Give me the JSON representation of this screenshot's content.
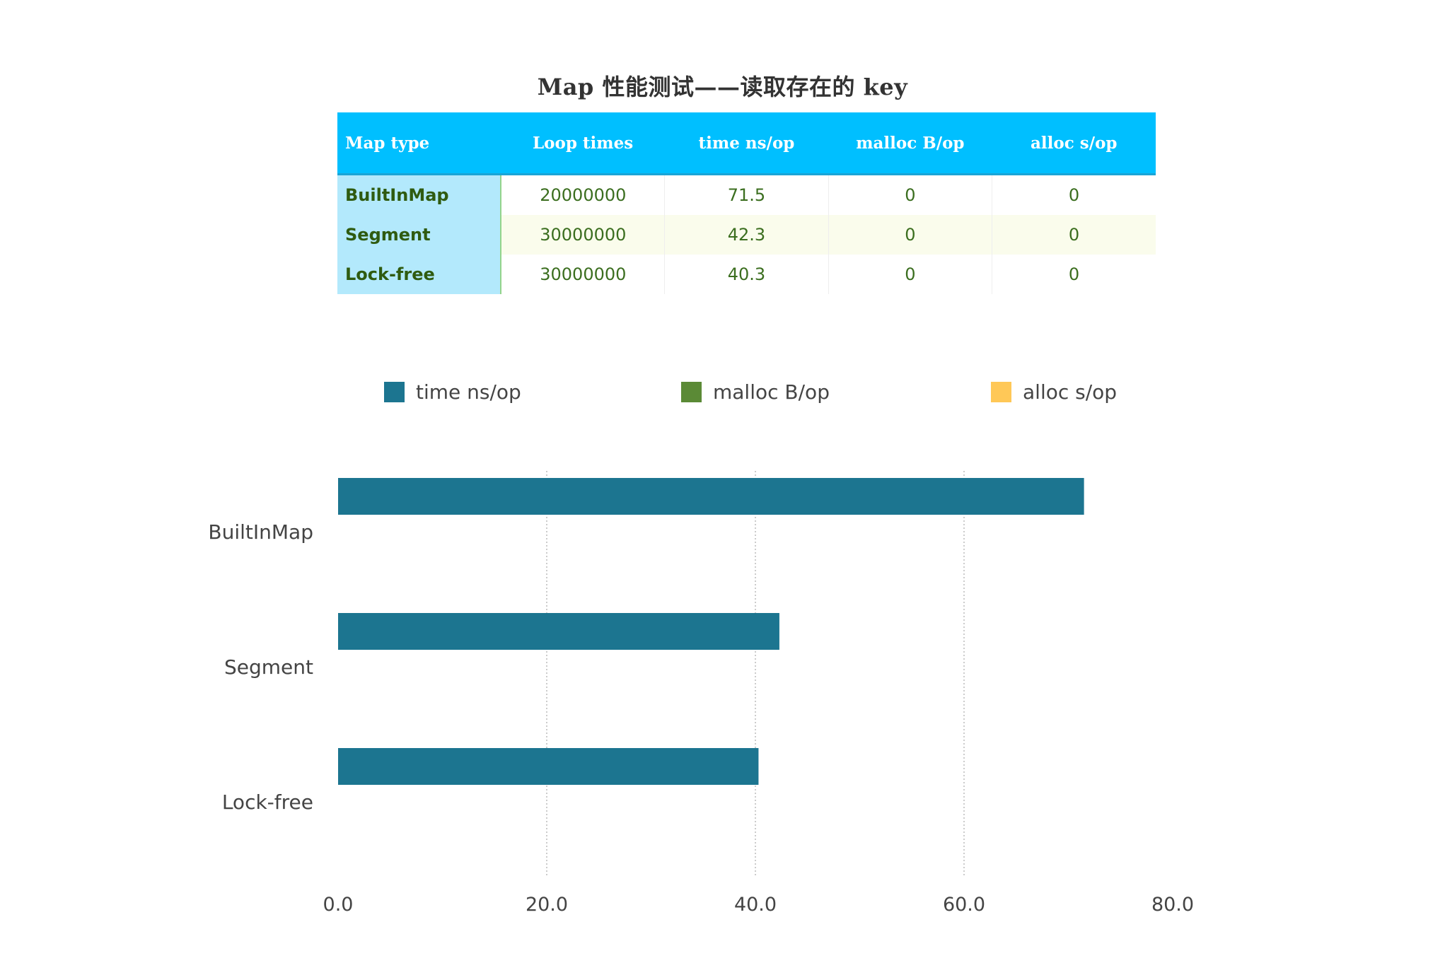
{
  "title": "Map 性能测试——读取存在的 key",
  "table": {
    "headers": [
      "Map type",
      "Loop times",
      "time ns/op",
      "malloc B/op",
      "alloc s/op"
    ],
    "rows": [
      [
        "BuiltInMap",
        "20000000",
        "71.5",
        "0",
        "0"
      ],
      [
        "Segment",
        "30000000",
        "42.3",
        "0",
        "0"
      ],
      [
        "Lock-free",
        "30000000",
        "40.3",
        "0",
        "0"
      ]
    ]
  },
  "legend": [
    {
      "label": "time ns/op",
      "color": "#1c7590"
    },
    {
      "label": "malloc B/op",
      "color": "#5b8a36"
    },
    {
      "label": "alloc s/op",
      "color": "#ffc857"
    }
  ],
  "chart_data": {
    "type": "bar",
    "orientation": "horizontal",
    "categories": [
      "BuiltInMap",
      "Segment",
      "Lock-free"
    ],
    "series": [
      {
        "name": "time ns/op",
        "values": [
          71.5,
          42.3,
          40.3
        ],
        "color": "#1c7590"
      },
      {
        "name": "malloc B/op",
        "values": [
          0,
          0,
          0
        ],
        "color": "#5b8a36"
      },
      {
        "name": "alloc s/op",
        "values": [
          0,
          0,
          0
        ],
        "color": "#ffc857"
      }
    ],
    "xlim": [
      0,
      80
    ],
    "xticks": [
      "0.0",
      "20.0",
      "40.0",
      "60.0",
      "80.0"
    ],
    "grid": true,
    "legend_position": "top"
  }
}
